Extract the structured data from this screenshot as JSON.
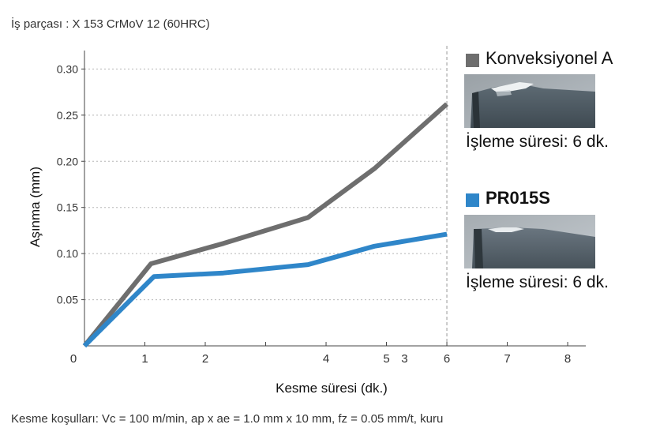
{
  "header": {
    "workpiece": "İş parçası : X 153 CrMoV 12 (60HRC)"
  },
  "footer": {
    "conditions": "Kesme koşulları: Vc = 100 m/min, ap x ae = 1.0 mm x 10 mm, fz = 0.05 mm/t, kuru"
  },
  "chart_data": {
    "type": "line",
    "xlabel": "Kesme süresi (dk.)",
    "ylabel": "Aşınma (mm)",
    "xlim": [
      0,
      8.3
    ],
    "ylim": [
      0,
      0.32
    ],
    "x_ticks": [
      {
        "value": 0,
        "label": "0"
      },
      {
        "value": 1,
        "label": "1"
      },
      {
        "value": 2,
        "label": "2"
      },
      {
        "value": 3,
        "label": ""
      },
      {
        "value": 4,
        "label": "4"
      },
      {
        "value": 5,
        "label": "5"
      },
      {
        "value": 6,
        "label": "6"
      },
      {
        "value": 7,
        "label": "7"
      },
      {
        "value": 8,
        "label": "8"
      }
    ],
    "x_extra_labels": [
      {
        "value": 5.3,
        "label": "3"
      }
    ],
    "y_ticks": [
      {
        "value": 0.05,
        "label": "0.05"
      },
      {
        "value": 0.1,
        "label": "0.10"
      },
      {
        "value": 0.15,
        "label": "0.15"
      },
      {
        "value": 0.2,
        "label": "0.20"
      },
      {
        "value": 0.25,
        "label": "0.25"
      },
      {
        "value": 0.3,
        "label": "0.30"
      }
    ],
    "grid": "horizontal-dotted",
    "reference_line_x": 6,
    "series": [
      {
        "name": "Konveksiyonel A",
        "color": "#6e6e6e",
        "points": [
          [
            0,
            0
          ],
          [
            1.1,
            0.089
          ],
          [
            2.3,
            0.111
          ],
          [
            3.7,
            0.139
          ],
          [
            4.8,
            0.192
          ],
          [
            6,
            0.262
          ]
        ]
      },
      {
        "name": "PR015S",
        "color": "#2f86c9",
        "points": [
          [
            0,
            0
          ],
          [
            1.15,
            0.075
          ],
          [
            2.3,
            0.079
          ],
          [
            3.7,
            0.088
          ],
          [
            4.8,
            0.108
          ],
          [
            6,
            0.121
          ]
        ]
      }
    ]
  },
  "legend": {
    "entries": [
      {
        "name": "Konveksiyonel A",
        "color": "#6e6e6e",
        "caption": "İşleme süresi: 6 dk."
      },
      {
        "name": "PR015S",
        "color": "#2f86c9",
        "caption": "İşleme süresi: 6 dk."
      }
    ]
  }
}
